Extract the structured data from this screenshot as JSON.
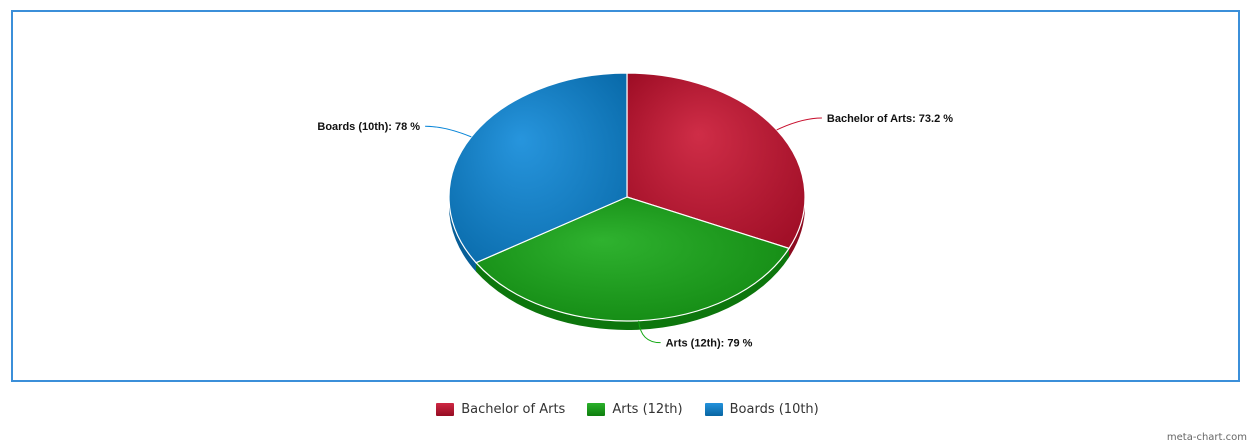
{
  "chart_data": {
    "type": "pie",
    "title": "",
    "slices": [
      {
        "label": "Bachelor of Arts",
        "value": 73.2,
        "unit": " %",
        "color": "#c8102e"
      },
      {
        "label": "Arts (12th)",
        "value": 79,
        "unit": " %",
        "color": "#13a813"
      },
      {
        "label": "Boards (10th)",
        "value": 78,
        "unit": " %",
        "color": "#0a86d8"
      }
    ],
    "legend": {
      "placement": "bottom"
    },
    "three_d": true
  },
  "watermark": "meta-chart.com"
}
